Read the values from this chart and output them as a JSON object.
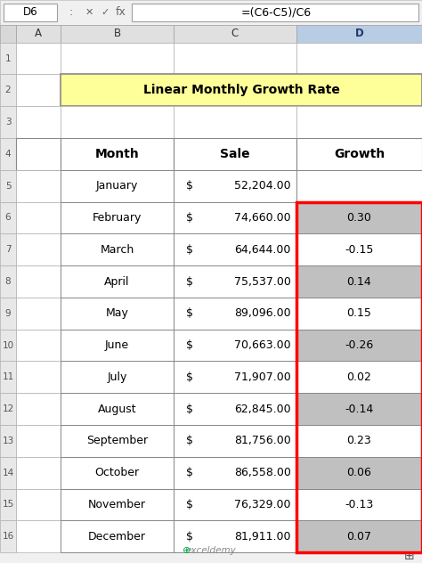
{
  "title": "Linear Monthly Growth Rate",
  "title_bg": "#FFFF99",
  "formula_bar_cell": "D6",
  "formula_bar_formula": "=(C6-C5)/C6",
  "col_headers": [
    "A",
    "B",
    "C",
    "D"
  ],
  "row_numbers": [
    "1",
    "2",
    "3",
    "4",
    "5",
    "6",
    "7",
    "8",
    "9",
    "10",
    "11",
    "12",
    "13",
    "14",
    "15",
    "16"
  ],
  "table_headers": [
    "Month",
    "Sale",
    "Growth"
  ],
  "months": [
    "January",
    "February",
    "March",
    "April",
    "May",
    "June",
    "July",
    "August",
    "September",
    "October",
    "November",
    "December"
  ],
  "sales": [
    "$ 52,204.00",
    "$ 74,660.00",
    "$ 64,644.00",
    "$ 75,537.00",
    "$ 89,096.00",
    "$ 70,663.00",
    "$ 71,907.00",
    "$ 62,845.00",
    "$ 81,756.00",
    "$ 86,558.00",
    "$ 76,329.00",
    "$ 81,911.00"
  ],
  "growth": [
    "",
    "0.30",
    "-0.15",
    "0.14",
    "0.15",
    "-0.26",
    "0.02",
    "-0.14",
    "0.23",
    "0.06",
    "-0.13",
    "0.07"
  ],
  "growth_highlighted_rows": [
    1,
    2,
    3,
    4,
    5,
    6,
    7,
    8,
    9,
    10,
    11
  ],
  "growth_red_border_rows": [
    1,
    2,
    3,
    4,
    5,
    6,
    7,
    8,
    9,
    10,
    11
  ],
  "header_bg": "#D3D3D3",
  "alt_row_bg": "#D3D3D3",
  "normal_row_bg": "#FFFFFF",
  "excel_toolbar_bg": "#F0F0F0",
  "excel_col_header_bg": "#E8E8E8",
  "selected_col_bg": "#C8D8E8",
  "red_border_color": "#FF0000",
  "grid_color": "#A0A0A0",
  "watermark": "exceldemy"
}
